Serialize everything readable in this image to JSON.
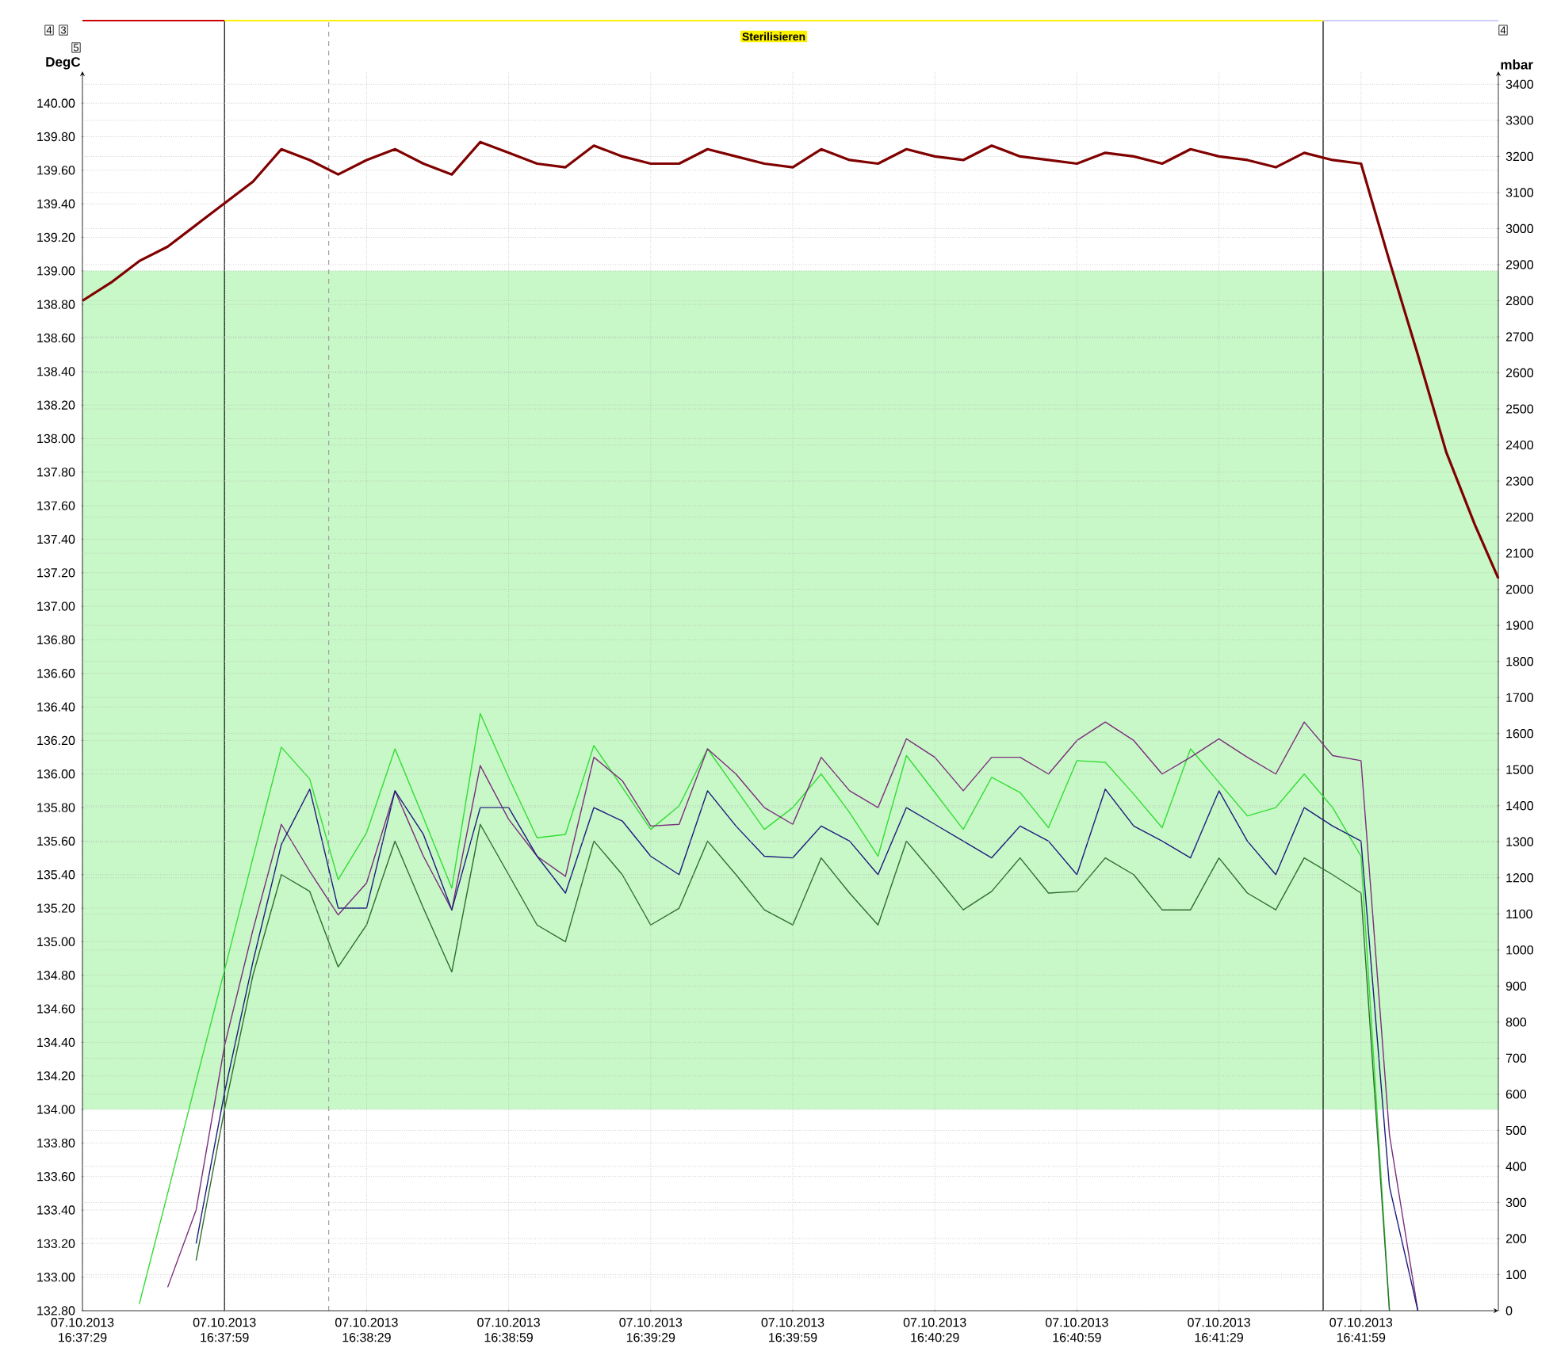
{
  "chart_data": {
    "type": "line",
    "ylabel": "DegC",
    "y2label": "mbar",
    "annotations": [
      "4",
      "3",
      "5",
      "4",
      "Sterilisieren"
    ],
    "x": [
      "2013-10-07T16:37:29",
      "2013-10-07T16:37:35",
      "2013-10-07T16:37:41",
      "2013-10-07T16:37:47",
      "2013-10-07T16:37:53",
      "2013-10-07T16:37:59",
      "2013-10-07T16:38:05",
      "2013-10-07T16:38:11",
      "2013-10-07T16:38:17",
      "2013-10-07T16:38:23",
      "2013-10-07T16:38:29",
      "2013-10-07T16:38:35",
      "2013-10-07T16:38:41",
      "2013-10-07T16:38:47",
      "2013-10-07T16:38:53",
      "2013-10-07T16:38:59",
      "2013-10-07T16:39:05",
      "2013-10-07T16:39:11",
      "2013-10-07T16:39:17",
      "2013-10-07T16:39:23",
      "2013-10-07T16:39:29",
      "2013-10-07T16:39:35",
      "2013-10-07T16:39:41",
      "2013-10-07T16:39:47",
      "2013-10-07T16:39:53",
      "2013-10-07T16:39:59",
      "2013-10-07T16:40:05",
      "2013-10-07T16:40:11",
      "2013-10-07T16:40:17",
      "2013-10-07T16:40:23",
      "2013-10-07T16:40:29",
      "2013-10-07T16:40:35",
      "2013-10-07T16:40:41",
      "2013-10-07T16:40:47",
      "2013-10-07T16:40:53",
      "2013-10-07T16:40:59",
      "2013-10-07T16:41:05",
      "2013-10-07T16:41:11",
      "2013-10-07T16:41:17",
      "2013-10-07T16:41:23",
      "2013-10-07T16:41:29",
      "2013-10-07T16:41:35",
      "2013-10-07T16:41:41",
      "2013-10-07T16:41:47",
      "2013-10-07T16:41:53",
      "2013-10-07T16:41:59",
      "2013-10-07T16:42:05",
      "2013-10-07T16:42:11",
      "2013-10-07T16:42:17",
      "2013-10-07T16:42:23",
      "2013-10-07T16:42:28"
    ],
    "series": [
      {
        "color": "#33dd33",
        "values": [
          null,
          null,
          132.84,
          133.5,
          134.17,
          134.83,
          135.5,
          136.16,
          135.97,
          135.37,
          135.65,
          136.15,
          135.74,
          135.32,
          136.36,
          135.98,
          135.62,
          135.64,
          136.17,
          135.92,
          135.67,
          135.81,
          136.15,
          135.91,
          135.67,
          135.8,
          136.0,
          135.77,
          135.51,
          136.11,
          135.89,
          135.67,
          135.98,
          135.89,
          135.68,
          136.08,
          136.07,
          135.88,
          135.68,
          136.15,
          135.95,
          135.75,
          135.8,
          136.0,
          135.8,
          135.51,
          132.8,
          null,
          null,
          null,
          null
        ]
      },
      {
        "color": "#7b2d7b",
        "values": [
          null,
          null,
          null,
          132.94,
          133.4,
          134.38,
          135.07,
          135.7,
          135.42,
          135.16,
          135.35,
          135.9,
          135.51,
          135.19,
          136.05,
          135.73,
          135.51,
          135.39,
          136.1,
          135.96,
          135.69,
          135.7,
          136.15,
          136.0,
          135.8,
          135.7,
          136.1,
          135.9,
          135.8,
          136.21,
          136.1,
          135.9,
          136.1,
          136.1,
          136.0,
          136.2,
          136.31,
          136.2,
          136.0,
          136.1,
          136.21,
          136.1,
          136.0,
          136.31,
          136.11,
          136.08,
          133.85,
          132.8,
          null,
          null,
          null
        ]
      },
      {
        "color": "#1c1c7c",
        "values": [
          null,
          null,
          null,
          null,
          133.2,
          134.1,
          134.88,
          135.58,
          135.91,
          135.2,
          135.2,
          135.9,
          135.64,
          135.19,
          135.8,
          135.8,
          135.51,
          135.29,
          135.8,
          135.72,
          135.51,
          135.4,
          135.9,
          135.69,
          135.51,
          135.5,
          135.69,
          135.6,
          135.4,
          135.8,
          135.7,
          135.6,
          135.5,
          135.69,
          135.6,
          135.4,
          135.91,
          135.69,
          135.6,
          135.5,
          135.9,
          135.6,
          135.4,
          135.8,
          135.69,
          135.6,
          133.54,
          132.8,
          null,
          null,
          null
        ]
      },
      {
        "color": "#2e6e2e",
        "values": [
          null,
          null,
          null,
          null,
          133.1,
          134.0,
          134.8,
          135.4,
          135.3,
          134.85,
          135.1,
          135.6,
          135.2,
          134.82,
          135.7,
          135.4,
          135.1,
          135.0,
          135.6,
          135.4,
          135.1,
          135.2,
          135.6,
          135.4,
          135.19,
          135.1,
          135.5,
          135.29,
          135.1,
          135.6,
          135.4,
          135.19,
          135.3,
          135.5,
          135.29,
          135.3,
          135.5,
          135.4,
          135.19,
          135.19,
          135.5,
          135.29,
          135.19,
          135.5,
          135.4,
          135.29,
          132.8,
          null,
          null,
          null,
          null
        ]
      },
      {
        "color": "#800000",
        "axis": "y2",
        "values": [
          2800,
          2850,
          2910,
          2950,
          3010,
          3070,
          3130,
          3220,
          3190,
          3150,
          3190,
          3220,
          3180,
          3150,
          3240,
          3210,
          3180,
          3170,
          3230,
          3200,
          3180,
          3180,
          3220,
          3200,
          3180,
          3170,
          3220,
          3190,
          3180,
          3220,
          3200,
          3190,
          3230,
          3200,
          3190,
          3180,
          3210,
          3200,
          3180,
          3220,
          3200,
          3190,
          3170,
          3210,
          3190,
          3180,
          2910,
          2650,
          2380,
          2180,
          2030
        ]
      }
    ],
    "xlim": [
      "2013-10-07T16:37:29",
      "2013-10-07T16:42:28"
    ],
    "xticks": [
      {
        "value": "2013-10-07T16:37:29",
        "label": "07.10.2013 16:37:29"
      },
      {
        "value": "2013-10-07T16:37:59",
        "label": "07.10.2013 16:37:59"
      },
      {
        "value": "2013-10-07T16:38:29",
        "label": "07.10.2013 16:38:29"
      },
      {
        "value": "2013-10-07T16:38:59",
        "label": "07.10.2013 16:38:59"
      },
      {
        "value": "2013-10-07T16:39:29",
        "label": "07.10.2013 16:39:29"
      },
      {
        "value": "2013-10-07T16:39:59",
        "label": "07.10.2013 16:39:59"
      },
      {
        "value": "2013-10-07T16:40:29",
        "label": "07.10.2013 16:40:29"
      },
      {
        "value": "2013-10-07T16:40:59",
        "label": "07.10.2013 16:40:59"
      },
      {
        "value": "2013-10-07T16:41:29",
        "label": "07.10.2013 16:41:29"
      },
      {
        "value": "2013-10-07T16:41:59",
        "label": "07.10.2013 16:41:59"
      }
    ],
    "ylim": [
      132.8,
      140.19
    ],
    "yticks": [
      {
        "value": 132.8,
        "label": "132.80"
      },
      {
        "value": 133.0,
        "label": "133.00"
      },
      {
        "value": 133.2,
        "label": "133.20"
      },
      {
        "value": 133.4,
        "label": "133.40"
      },
      {
        "value": 133.6,
        "label": "133.60"
      },
      {
        "value": 133.8,
        "label": "133.80"
      },
      {
        "value": 134.0,
        "label": "134.00"
      },
      {
        "value": 134.2,
        "label": "134.20"
      },
      {
        "value": 134.4,
        "label": "134.40"
      },
      {
        "value": 134.6,
        "label": "134.60"
      },
      {
        "value": 134.8,
        "label": "134.80"
      },
      {
        "value": 135.0,
        "label": "135.00"
      },
      {
        "value": 135.2,
        "label": "135.20"
      },
      {
        "value": 135.4,
        "label": "135.40"
      },
      {
        "value": 135.6,
        "label": "135.60"
      },
      {
        "value": 135.8,
        "label": "135.80"
      },
      {
        "value": 136.0,
        "label": "136.00"
      },
      {
        "value": 136.2,
        "label": "136.20"
      },
      {
        "value": 136.4,
        "label": "136.40"
      },
      {
        "value": 136.6,
        "label": "136.60"
      },
      {
        "value": 136.8,
        "label": "136.80"
      },
      {
        "value": 137.0,
        "label": "137.00"
      },
      {
        "value": 137.2,
        "label": "137.20"
      },
      {
        "value": 137.4,
        "label": "137.40"
      },
      {
        "value": 137.6,
        "label": "137.60"
      },
      {
        "value": 137.8,
        "label": "137.80"
      },
      {
        "value": 138.0,
        "label": "138.00"
      },
      {
        "value": 138.2,
        "label": "138.20"
      },
      {
        "value": 138.4,
        "label": "138.40"
      },
      {
        "value": 138.6,
        "label": "138.60"
      },
      {
        "value": 138.8,
        "label": "138.80"
      },
      {
        "value": 139.0,
        "label": "139.00"
      },
      {
        "value": 139.2,
        "label": "139.20"
      },
      {
        "value": 139.4,
        "label": "139.40"
      },
      {
        "value": 139.6,
        "label": "139.60"
      },
      {
        "value": 139.8,
        "label": "139.80"
      },
      {
        "value": 140.0,
        "label": "140.00"
      }
    ],
    "y2lim": [
      0,
      3436
    ],
    "y2ticks": [
      0,
      100,
      200,
      300,
      400,
      500,
      600,
      700,
      800,
      900,
      1000,
      1100,
      1200,
      1300,
      1400,
      1500,
      1600,
      1700,
      1800,
      1900,
      2000,
      2100,
      2200,
      2300,
      2400,
      2500,
      2600,
      2700,
      2800,
      2900,
      3000,
      3100,
      3200,
      3300,
      3400
    ],
    "grid": true,
    "bands": [
      {
        "axis": "y",
        "from": 134,
        "to": 139,
        "color": "#c8f8c8"
      }
    ],
    "ref_lines": [
      {
        "axis": "x",
        "value": "2013-10-07T16:37:59",
        "color": "#000000",
        "line_style": "solid"
      },
      {
        "axis": "x",
        "value": "2013-10-07T16:38:21",
        "color": "#a0a0a0",
        "line_style": "dashed"
      },
      {
        "axis": "x",
        "value": "2013-10-07T16:41:51",
        "color": "#000000",
        "line_style": "solid"
      }
    ]
  }
}
